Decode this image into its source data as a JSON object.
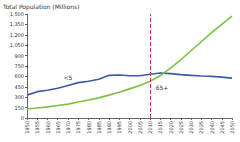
{
  "chart_data": {
    "type": "line",
    "y_label": "Total Population (Millions)",
    "x": [
      1950,
      1955,
      1960,
      1965,
      1970,
      1975,
      1980,
      1985,
      1990,
      1995,
      2000,
      2005,
      2010,
      2015,
      2020,
      2025,
      2030,
      2035,
      2040,
      2045,
      2050
    ],
    "series": [
      {
        "name": "<5",
        "color": "#3b5ba5",
        "values": [
          330,
          380,
          400,
          430,
          470,
          510,
          530,
          560,
          615,
          620,
          610,
          610,
          630,
          650,
          640,
          625,
          615,
          605,
          600,
          590,
          575
        ]
      },
      {
        "name": "65+",
        "color": "#7cc242",
        "values": [
          130,
          145,
          160,
          180,
          200,
          230,
          260,
          290,
          330,
          370,
          420,
          470,
          530,
          610,
          720,
          840,
          970,
          1100,
          1230,
          1350,
          1470
        ]
      }
    ],
    "xlim": [
      1950,
      2050
    ],
    "xticks": [
      1950,
      1955,
      1960,
      1965,
      1970,
      1975,
      1980,
      1985,
      1990,
      1995,
      2000,
      2005,
      2010,
      2015,
      2020,
      2025,
      2030,
      2035,
      2040,
      2045,
      2050
    ],
    "ylim": [
      0,
      1500
    ],
    "yticks": [
      0,
      150,
      300,
      450,
      600,
      750,
      900,
      {
        "value": 1050,
        "label": "1,050"
      },
      {
        "value": 1200,
        "label": "1,200"
      },
      {
        "value": 1350,
        "label": "1,350"
      },
      {
        "value": 1500,
        "label": "1,500"
      }
    ],
    "vline": {
      "x": 2010,
      "color": "#e03030",
      "line_style": "dashed"
    },
    "grid": false
  }
}
